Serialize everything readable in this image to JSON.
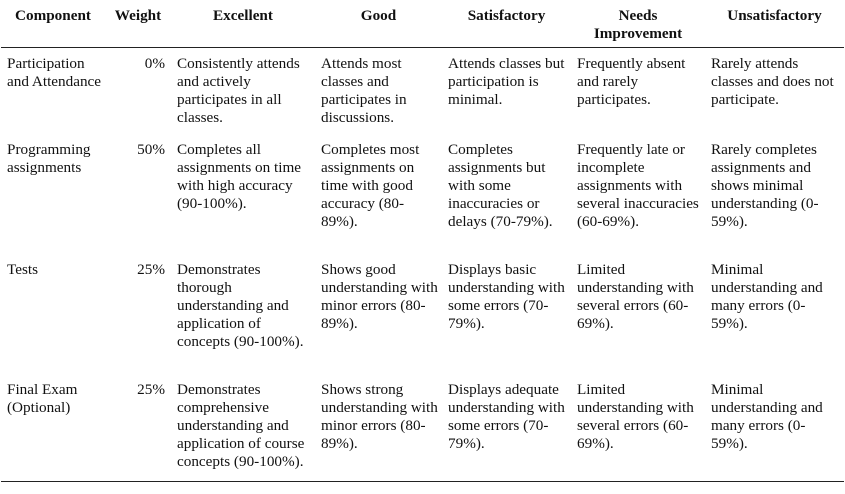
{
  "header": {
    "component": "Component",
    "weight": "Weight",
    "excellent": "Excellent",
    "good": "Good",
    "satisfactory": "Satisfactory",
    "needs_improvement": "Needs Improvement",
    "unsatisfactory": "Unsatisfactory"
  },
  "rows": [
    {
      "component": "Participation and Attendance",
      "weight": "0%",
      "excellent": "Consistently attends and actively participates in all classes.",
      "good": "Attends most classes and participates in discussions.",
      "satisfactory": "Attends classes but participation is minimal.",
      "needs_improvement": "Frequently absent and rarely participates.",
      "unsatisfactory": "Rarely attends classes and does not participate."
    },
    {
      "component": "Programming assignments",
      "weight": "50%",
      "excellent": "Completes all assignments on time with high accuracy (90-100%).",
      "good": "Completes most assignments on time with good accuracy (80-89%).",
      "satisfactory": "Completes assignments but with some inaccuracies or delays (70-79%).",
      "needs_improvement": "Frequently late or incomplete assignments with several inaccuracies (60-69%).",
      "unsatisfactory": "Rarely completes assignments and shows minimal understanding (0-59%)."
    },
    {
      "component": "Tests",
      "weight": "25%",
      "excellent": "Demonstrates thorough understanding and application of concepts (90-100%).",
      "good": "Shows good understanding with minor errors (80-89%).",
      "satisfactory": "Displays basic understanding with some errors (70-79%).",
      "needs_improvement": "Limited understanding with several errors (60-69%).",
      "unsatisfactory": "Minimal understanding and many errors (0-59%)."
    },
    {
      "component": "Final Exam (Optional)",
      "weight": "25%",
      "excellent": "Demonstrates comprehensive understanding and application of course concepts (90-100%).",
      "good": "Shows strong understanding with minor errors (80-89%).",
      "satisfactory": "Displays adequate understanding with some errors (70-79%).",
      "needs_improvement": "Limited understanding with several errors (60-69%).",
      "unsatisfactory": "Minimal understanding and many errors (0-59%)."
    }
  ]
}
